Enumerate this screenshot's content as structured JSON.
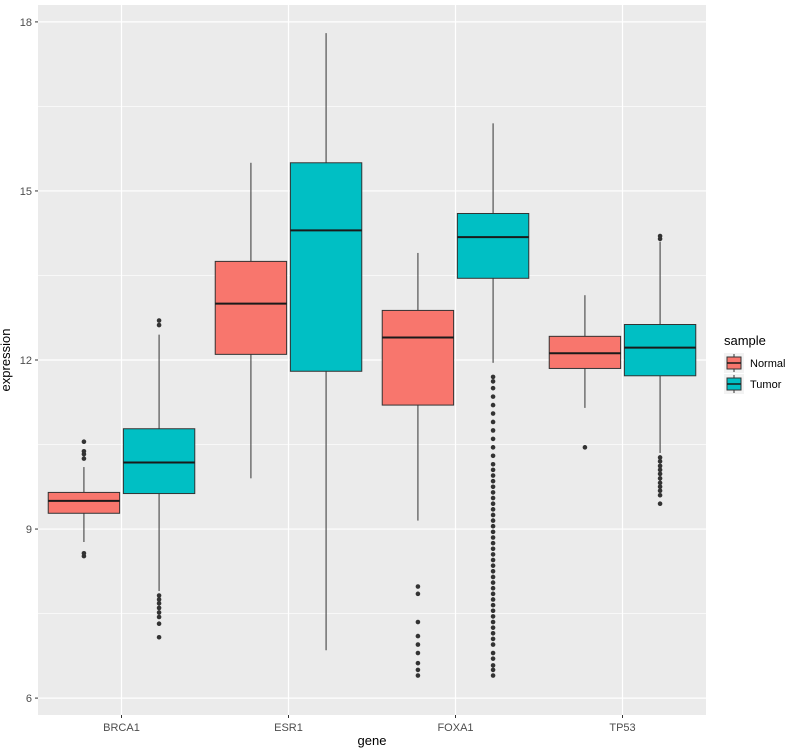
{
  "chart_data": {
    "type": "boxplot",
    "title": "",
    "xlabel": "gene",
    "ylabel": "expression",
    "ylim": [
      5.7,
      18.3
    ],
    "y_ticks": [
      6,
      9,
      12,
      15,
      18
    ],
    "y_tick_labels": [
      "6",
      "9",
      "12",
      "15",
      "18"
    ],
    "categories": [
      "BRCA1",
      "ESR1",
      "FOXA1",
      "TP53"
    ],
    "grid": true,
    "legend": {
      "title": "sample",
      "position": "right"
    },
    "series": [
      {
        "name": "Normal",
        "color": "#F8766D",
        "boxes": [
          {
            "category": "BRCA1",
            "q1": 9.28,
            "median": 9.5,
            "q3": 9.65,
            "whisker_low": 8.77,
            "whisker_high": 10.1,
            "outliers": [
              8.52,
              8.57,
              10.25,
              10.33,
              10.38,
              10.55
            ]
          },
          {
            "category": "ESR1",
            "q1": 12.1,
            "median": 13.0,
            "q3": 13.75,
            "whisker_low": 9.9,
            "whisker_high": 15.5,
            "outliers": []
          },
          {
            "category": "FOXA1",
            "q1": 11.2,
            "median": 12.4,
            "q3": 12.88,
            "whisker_low": 9.15,
            "whisker_high": 13.9,
            "outliers": [
              6.4,
              6.5,
              6.62,
              6.8,
              6.95,
              7.1,
              7.35,
              7.85,
              7.98
            ]
          },
          {
            "category": "TP53",
            "q1": 11.85,
            "median": 12.12,
            "q3": 12.42,
            "whisker_low": 11.15,
            "whisker_high": 13.15,
            "outliers": [
              10.45
            ]
          }
        ]
      },
      {
        "name": "Tumor",
        "color": "#00BFC4",
        "boxes": [
          {
            "category": "BRCA1",
            "q1": 9.63,
            "median": 10.18,
            "q3": 10.78,
            "whisker_low": 7.9,
            "whisker_high": 12.45,
            "outliers": [
              7.08,
              7.32,
              7.44,
              7.52,
              7.6,
              7.68,
              7.75,
              7.82,
              12.62,
              12.7
            ]
          },
          {
            "category": "ESR1",
            "q1": 11.8,
            "median": 14.3,
            "q3": 15.5,
            "whisker_low": 6.85,
            "whisker_high": 17.8,
            "outliers": []
          },
          {
            "category": "FOXA1",
            "q1": 13.45,
            "median": 14.18,
            "q3": 14.6,
            "whisker_low": 11.95,
            "whisker_high": 16.2,
            "outliers": [
              6.4,
              6.5,
              6.58,
              6.7,
              6.8,
              6.95,
              7.05,
              7.15,
              7.25,
              7.35,
              7.45,
              7.55,
              7.65,
              7.75,
              7.85,
              7.95,
              8.05,
              8.15,
              8.25,
              8.35,
              8.45,
              8.55,
              8.65,
              8.75,
              8.85,
              8.95,
              9.05,
              9.15,
              9.25,
              9.35,
              9.45,
              9.55,
              9.65,
              9.75,
              9.85,
              9.95,
              10.05,
              10.15,
              10.3,
              10.45,
              10.6,
              10.75,
              10.9,
              11.05,
              11.2,
              11.35,
              11.5,
              11.62,
              11.7
            ]
          },
          {
            "category": "TP53",
            "q1": 11.72,
            "median": 12.22,
            "q3": 12.63,
            "whisker_low": 10.35,
            "whisker_high": 14.1,
            "outliers": [
              9.45,
              9.6,
              9.68,
              9.75,
              9.82,
              9.9,
              9.98,
              10.05,
              10.12,
              10.2,
              10.27,
              14.15,
              14.2
            ]
          }
        ]
      }
    ]
  }
}
